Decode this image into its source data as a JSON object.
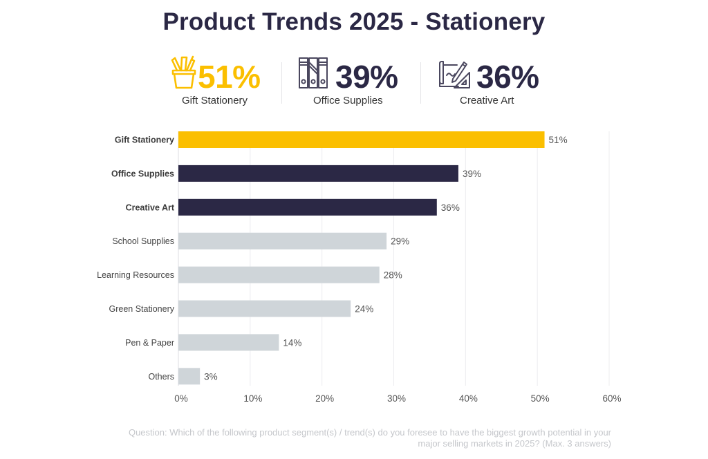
{
  "title": "Product Trends 2025 - Stationery",
  "kpis": [
    {
      "value": "51%",
      "label": "Gift Stationery",
      "icon": "pencil-cup-icon",
      "color": "#FBBF00"
    },
    {
      "value": "39%",
      "label": "Office Supplies",
      "icon": "binders-icon",
      "color": "#2B2845"
    },
    {
      "value": "36%",
      "label": "Creative Art",
      "icon": "drawing-tools-icon",
      "color": "#2B2845"
    }
  ],
  "colors": {
    "highlight": "#FBBF00",
    "dark": "#2B2845",
    "muted": "#CFD5D9",
    "grid": "#ECECEF",
    "label": "#444444"
  },
  "chart_data": {
    "type": "bar",
    "orientation": "horizontal",
    "title": "Product Trends 2025 - Stationery",
    "xlabel": "",
    "ylabel": "",
    "categories": [
      "Gift Stationery",
      "Office Supplies",
      "Creative Art",
      "School Supplies",
      "Learning Resources",
      "Green Stationery",
      "Pen & Paper",
      "Others"
    ],
    "values": [
      51,
      39,
      36,
      29,
      28,
      24,
      14,
      3
    ],
    "data_labels": [
      "51%",
      "39%",
      "36%",
      "29%",
      "28%",
      "24%",
      "14%",
      "3%"
    ],
    "highlight": [
      "highlight",
      "dark",
      "dark",
      "muted",
      "muted",
      "muted",
      "muted",
      "muted"
    ],
    "bold_categories": [
      true,
      true,
      true,
      false,
      false,
      false,
      false,
      false
    ],
    "xlim": [
      0,
      60
    ],
    "xticks": [
      0,
      10,
      20,
      30,
      40,
      50,
      60
    ],
    "xtick_labels": [
      "0%",
      "10%",
      "20%",
      "30%",
      "40%",
      "50%",
      "60%"
    ],
    "grid": true,
    "legend": "none"
  },
  "footnote": {
    "line1": "Question: Which of the following product segment(s) / trend(s) do you foresee to have the biggest growth potential in your",
    "line2": "major selling markets in 2025? (Max. 3 answers)"
  }
}
